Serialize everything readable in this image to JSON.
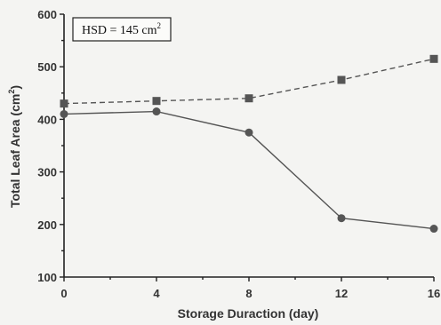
{
  "chart_data": {
    "type": "line",
    "xlabel": "Storage Duraction (day)",
    "ylabel_main": "Total Leaf Area (cm",
    "ylabel_sup": "2",
    "ylabel_end": ")",
    "annotation_main": "HSD = 145 cm",
    "annotation_sup": "2",
    "x": [
      0,
      4,
      8,
      12,
      16
    ],
    "xticks": [
      "0",
      "4",
      "8",
      "12",
      "16"
    ],
    "yticks": [
      "100",
      "200",
      "300",
      "400",
      "500",
      "600"
    ],
    "xlim": [
      0,
      16
    ],
    "ylim": [
      100,
      600
    ],
    "grid": false,
    "series": [
      {
        "marker": "square",
        "line_style": "dashed",
        "color": "#555555",
        "values": [
          430,
          435,
          440,
          475,
          515
        ]
      },
      {
        "marker": "circle",
        "line_style": "solid",
        "color": "#555555",
        "values": [
          410,
          415,
          375,
          212,
          192
        ]
      }
    ]
  }
}
